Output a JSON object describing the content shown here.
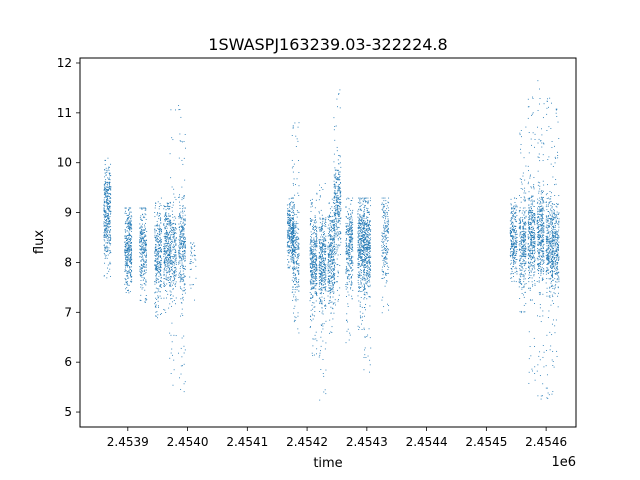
{
  "chart_data": {
    "type": "scatter",
    "title": "1SWASPJ163239.03-322224.8",
    "xlabel": "time",
    "ylabel": "flux",
    "x_offset_label": "1e6",
    "xlim": [
      2.45382,
      2.45465
    ],
    "ylim": [
      4.7,
      12.1
    ],
    "x_ticks": [
      2.4539,
      2.454,
      2.4541,
      2.4542,
      2.4543,
      2.4544,
      2.4545,
      2.4546
    ],
    "x_tick_labels": [
      "2.4539",
      "2.4540",
      "2.4541",
      "2.4542",
      "2.4543",
      "2.4544",
      "2.4545",
      "2.4546"
    ],
    "y_ticks": [
      5,
      6,
      7,
      8,
      9,
      10,
      11,
      12
    ],
    "y_tick_labels": [
      "5",
      "6",
      "7",
      "8",
      "9",
      "10",
      "11",
      "12"
    ],
    "grid": false,
    "marker_color": "#1f77b4",
    "series": [
      {
        "clusters": [
          {
            "x": 2.453865,
            "y_center": 9.0,
            "y_low": 7.7,
            "y_high": 10.1,
            "density": 1.0
          },
          {
            "x": 2.4539,
            "y_center": 8.3,
            "y_low": 7.4,
            "y_high": 9.1,
            "density": 0.9
          },
          {
            "x": 2.453925,
            "y_center": 8.3,
            "y_low": 7.2,
            "y_high": 9.1,
            "density": 0.7
          },
          {
            "x": 2.45395,
            "y_center": 8.2,
            "y_low": 6.9,
            "y_high": 9.3,
            "density": 0.8
          },
          {
            "x": 2.453965,
            "y_center": 8.3,
            "y_low": 7.0,
            "y_high": 9.2,
            "density": 0.8
          },
          {
            "x": 2.453975,
            "y_center": 8.2,
            "y_low": 5.5,
            "y_high": 11.2,
            "density": 0.6
          },
          {
            "x": 2.45399,
            "y_center": 8.4,
            "y_low": 5.4,
            "y_high": 11.3,
            "density": 0.8
          },
          {
            "x": 2.454008,
            "y_center": 8.1,
            "y_low": 7.1,
            "y_high": 8.4,
            "density": 0.1
          },
          {
            "x": 2.454172,
            "y_center": 8.6,
            "y_low": 7.9,
            "y_high": 9.3,
            "density": 0.8
          },
          {
            "x": 2.45418,
            "y_center": 8.2,
            "y_low": 6.5,
            "y_high": 11.0,
            "density": 0.7
          },
          {
            "x": 2.45421,
            "y_center": 8.1,
            "y_low": 6.0,
            "y_high": 9.4,
            "density": 1.0
          },
          {
            "x": 2.454225,
            "y_center": 8.0,
            "y_low": 5.2,
            "y_high": 9.7,
            "density": 1.0
          },
          {
            "x": 2.45424,
            "y_center": 8.1,
            "y_low": 6.5,
            "y_high": 9.3,
            "density": 0.9
          },
          {
            "x": 2.45425,
            "y_center": 9.2,
            "y_low": 7.1,
            "y_high": 11.7,
            "density": 0.8
          },
          {
            "x": 2.45427,
            "y_center": 8.3,
            "y_low": 6.4,
            "y_high": 9.3,
            "density": 0.8
          },
          {
            "x": 2.45429,
            "y_center": 8.4,
            "y_low": 6.6,
            "y_high": 9.3,
            "density": 1.0
          },
          {
            "x": 2.4543,
            "y_center": 8.3,
            "y_low": 5.8,
            "y_high": 9.3,
            "density": 1.0
          },
          {
            "x": 2.45433,
            "y_center": 8.5,
            "y_low": 7.0,
            "y_high": 9.3,
            "density": 0.5
          },
          {
            "x": 2.454545,
            "y_center": 8.5,
            "y_low": 7.6,
            "y_high": 9.3,
            "density": 0.7
          },
          {
            "x": 2.45456,
            "y_center": 8.4,
            "y_low": 7.0,
            "y_high": 10.9,
            "density": 0.8
          },
          {
            "x": 2.454575,
            "y_center": 8.5,
            "y_low": 5.5,
            "y_high": 11.5,
            "density": 1.0
          },
          {
            "x": 2.45459,
            "y_center": 8.6,
            "y_low": 5.1,
            "y_high": 11.7,
            "density": 1.0
          },
          {
            "x": 2.454605,
            "y_center": 8.4,
            "y_low": 5.2,
            "y_high": 11.5,
            "density": 0.9
          },
          {
            "x": 2.454615,
            "y_center": 8.3,
            "y_low": 5.9,
            "y_high": 11.1,
            "density": 0.8
          }
        ]
      }
    ]
  }
}
